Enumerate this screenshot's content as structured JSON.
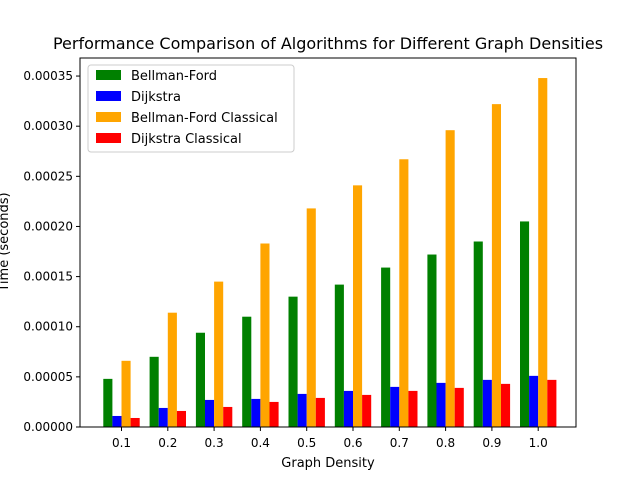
{
  "chart_data": {
    "type": "bar",
    "title": "Performance Comparison of Algorithms for Different Graph Densities",
    "xlabel": "Graph Density",
    "ylabel": "Time (seconds)",
    "categories": [
      "0.1",
      "0.2",
      "0.3",
      "0.4",
      "0.5",
      "0.6",
      "0.7",
      "0.8",
      "0.9",
      "1.0"
    ],
    "ylim": [
      0,
      0.000368
    ],
    "yticks": [
      "0.00000",
      "0.00005",
      "0.00010",
      "0.00015",
      "0.00020",
      "0.00025",
      "0.00030",
      "0.00035"
    ],
    "legend_position": "top-left",
    "grid": false,
    "series": [
      {
        "name": "Bellman-Ford",
        "color": "#008000",
        "values": [
          4.8e-05,
          7e-05,
          9.4e-05,
          0.00011,
          0.00013,
          0.000142,
          0.000159,
          0.000172,
          0.000185,
          0.000205
        ]
      },
      {
        "name": "Dijkstra",
        "color": "#0000ff",
        "values": [
          1.1e-05,
          1.9e-05,
          2.7e-05,
          2.8e-05,
          3.3e-05,
          3.6e-05,
          4e-05,
          4.4e-05,
          4.7e-05,
          5.1e-05
        ]
      },
      {
        "name": "Bellman-Ford Classical",
        "color": "#ffa500",
        "values": [
          6.6e-05,
          0.000114,
          0.000145,
          0.000183,
          0.000218,
          0.000241,
          0.000267,
          0.000296,
          0.000322,
          0.000348
        ]
      },
      {
        "name": "Dijkstra Classical",
        "color": "#ff0000",
        "values": [
          9e-06,
          1.6e-05,
          2e-05,
          2.5e-05,
          2.9e-05,
          3.2e-05,
          3.6e-05,
          3.9e-05,
          4.3e-05,
          4.7e-05
        ]
      }
    ]
  }
}
